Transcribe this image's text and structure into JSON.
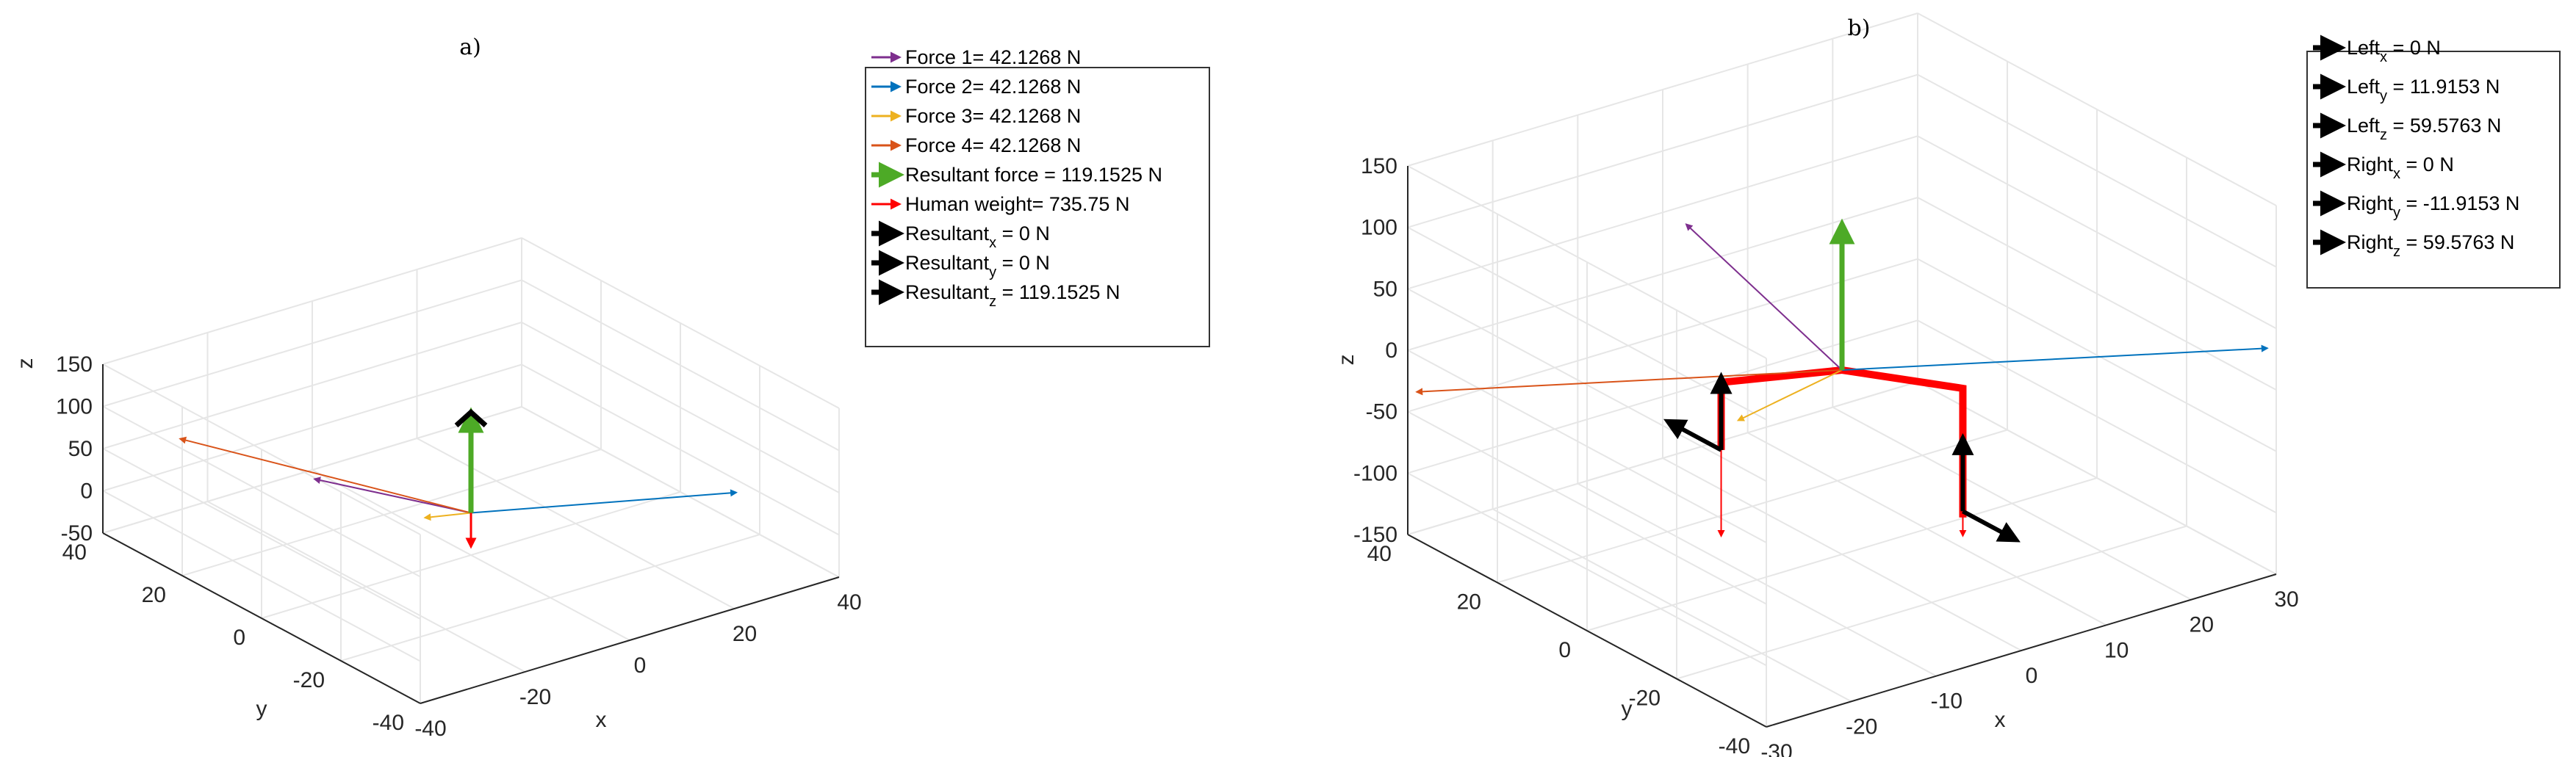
{
  "chart_data": [
    {
      "type": "vector3d",
      "title": "a)",
      "xlabel": "x",
      "ylabel": "y",
      "zlabel": "z",
      "xlim": [
        -40,
        40
      ],
      "ylim": [
        -40,
        40
      ],
      "zlim": [
        -50,
        150
      ],
      "xticks": [
        -40,
        -20,
        0,
        20,
        40
      ],
      "yticks": [
        -40,
        -20,
        0,
        20,
        40
      ],
      "zticks": [
        -50,
        0,
        50,
        100,
        150
      ],
      "grid": true,
      "legend_position": "top-right (outside)",
      "vectors": [
        {
          "legend": "Force 1= 42.1268 N",
          "color": "#7E2F8E",
          "from": [
            0,
            0,
            0
          ],
          "to": [
            -17,
            17,
            29
          ],
          "width": 2
        },
        {
          "legend": "Force 2= 42.1268 N",
          "color": "#0072BD",
          "from": [
            0,
            0,
            0
          ],
          "to": [
            34,
            -22,
            16
          ],
          "width": 2
        },
        {
          "legend": "Force 3= 42.1268 N",
          "color": "#EDB120",
          "from": [
            0,
            0,
            0
          ],
          "to": [
            -5,
            5,
            -9
          ],
          "width": 2
        },
        {
          "legend": "Force 4= 42.1268 N",
          "color": "#D95319",
          "from": [
            0,
            0,
            0
          ],
          "to": [
            -26,
            39,
            38
          ],
          "width": 2
        },
        {
          "legend": "Resultant force = 119.1525 N",
          "color": "#4DAA26",
          "from": [
            0,
            0,
            0
          ],
          "to": [
            0,
            0,
            119.1525
          ],
          "width": 7
        },
        {
          "legend": "Human weight= 735.75 N",
          "color": "#FF0000",
          "from": [
            0,
            0,
            0
          ],
          "to": [
            0,
            0,
            -40
          ],
          "width": 3
        },
        {
          "legend": "Resultant",
          "legend_sub": "x",
          "legend_rest": " = 0 N",
          "color": "#000000",
          "from": [
            0,
            0,
            119.1525
          ],
          "to": [
            0,
            0,
            119.1525
          ],
          "width": 7,
          "legend_only": true
        },
        {
          "legend": "Resultant",
          "legend_sub": "y",
          "legend_rest": " = 0 N",
          "color": "#000000",
          "from": [
            0,
            0,
            119.1525
          ],
          "to": [
            0,
            0,
            119.1525
          ],
          "width": 7,
          "legend_only": true
        },
        {
          "legend": "Resultant",
          "legend_sub": "z",
          "legend_rest": " = 119.1525 N",
          "color": "#000000",
          "from": [
            0,
            0,
            0
          ],
          "to": [
            0,
            0,
            119.1525
          ],
          "width": 7,
          "head_only": true
        }
      ]
    },
    {
      "type": "vector3d",
      "title": "b)",
      "xlabel": "x",
      "ylabel": "y",
      "zlabel": "z",
      "xlim": [
        -30,
        30
      ],
      "ylim": [
        -40,
        40
      ],
      "zlim": [
        -150,
        150
      ],
      "xticks": [
        -30,
        -20,
        -10,
        0,
        10,
        20,
        30
      ],
      "yticks": [
        -40,
        -20,
        0,
        20,
        40
      ],
      "zticks": [
        -150,
        -100,
        -50,
        0,
        50,
        100,
        150
      ],
      "grid": true,
      "legend_position": "top-right (outside)",
      "vectors": [
        {
          "color": "#7E2F8E",
          "from": [
            0,
            0,
            0
          ],
          "to": [
            -12,
            12,
            120
          ],
          "width": 2
        },
        {
          "color": "#0072BD",
          "from": [
            0,
            0,
            0
          ],
          "to": [
            30,
            -38,
            30
          ],
          "width": 2
        },
        {
          "color": "#EDB120",
          "from": [
            0,
            0,
            0
          ],
          "to": [
            -8,
            8,
            -40
          ],
          "width": 2
        },
        {
          "color": "#D95319",
          "from": [
            0,
            0,
            0
          ],
          "to": [
            -30,
            38,
            -30
          ],
          "width": 2
        },
        {
          "color": "#4DAA26",
          "from": [
            0,
            0,
            0
          ],
          "to": [
            0,
            0,
            119.1525
          ],
          "width": 7
        },
        {
          "color": "#FF0000",
          "from": [
            -10,
            8,
            -60
          ],
          "to": [
            -10,
            8,
            -130
          ],
          "width": 2
        },
        {
          "color": "#FF0000",
          "from": [
            10,
            -8,
            -60
          ],
          "to": [
            10,
            -8,
            -140
          ],
          "width": 2
        },
        {
          "color": "#000000",
          "from": [
            -10,
            8,
            -60
          ],
          "to": [
            -10,
            8,
            0
          ],
          "width": 6,
          "legend": "Left",
          "legend_sub": "z",
          "legend_rest": " = 59.5763 N"
        },
        {
          "color": "#000000",
          "from": [
            -10,
            8,
            -60
          ],
          "to": [
            -10,
            20,
            -60
          ],
          "width": 6,
          "legend": "Left",
          "legend_sub": "y",
          "legend_rest": " = 11.9153 N"
        },
        {
          "color": "#000000",
          "from": [
            -10,
            8,
            -60
          ],
          "to": [
            -10,
            8,
            -60
          ],
          "width": 6,
          "legend": "Left",
          "legend_sub": "x",
          "legend_rest": " = 0 N",
          "legend_only": true
        },
        {
          "color": "#000000",
          "from": [
            10,
            -8,
            -120
          ],
          "to": [
            10,
            -8,
            -60
          ],
          "width": 6,
          "legend": "Right",
          "legend_sub": "z",
          "legend_rest": " = 59.5763 N"
        },
        {
          "color": "#000000",
          "from": [
            10,
            -8,
            -120
          ],
          "to": [
            10,
            -20,
            -120
          ],
          "width": 6,
          "legend": "Right",
          "legend_sub": "y",
          "legend_rest": " = -11.9153 N"
        },
        {
          "color": "#000000",
          "from": [
            10,
            -8,
            -120
          ],
          "to": [
            10,
            -8,
            -120
          ],
          "width": 6,
          "legend": "Right",
          "legend_sub": "x",
          "legend_rest": " = 0 N",
          "legend_only": true
        }
      ],
      "body_polyline": {
        "color": "#FF0000",
        "points": [
          [
            -10,
            8,
            -60
          ],
          [
            -10,
            8,
            -5
          ],
          [
            0,
            0,
            0
          ],
          [
            10,
            -8,
            -20
          ],
          [
            10,
            -8,
            -125
          ]
        ]
      },
      "legend_order": [
        9,
        8,
        7,
        12,
        11,
        10
      ]
    }
  ]
}
